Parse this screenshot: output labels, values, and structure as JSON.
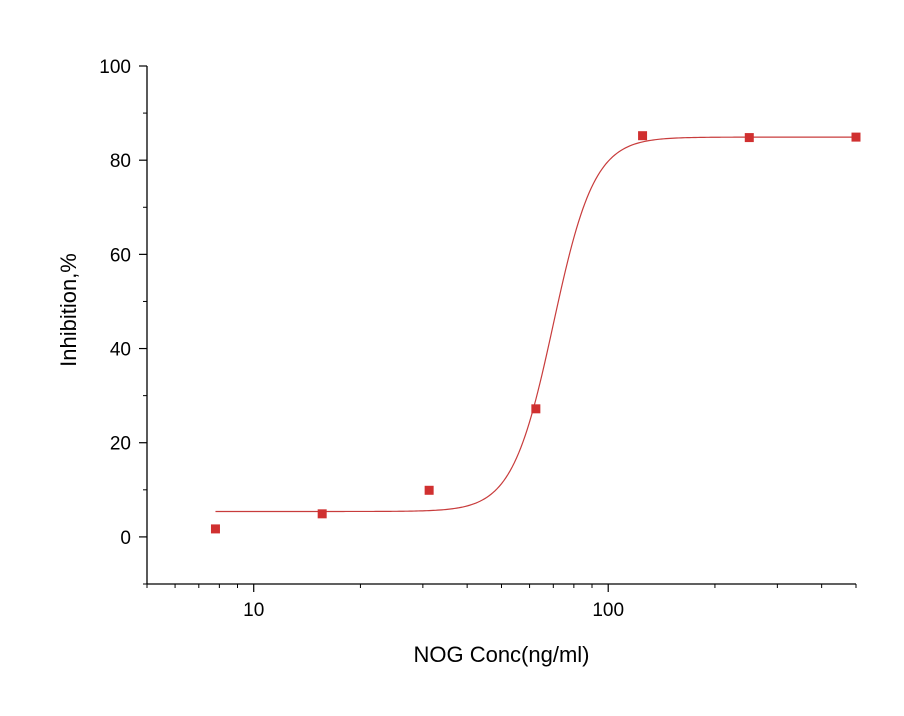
{
  "chart_data": {
    "type": "scatter",
    "title": "",
    "xlabel": "NOG Conc(ng/ml)",
    "ylabel": "Inhibition,%",
    "x_scale": "log",
    "xlim": [
      5,
      500
    ],
    "ylim": [
      -10,
      100
    ],
    "x_ticks": [
      10,
      100
    ],
    "x_tick_labels": [
      "10",
      "100"
    ],
    "y_ticks": [
      0,
      20,
      40,
      60,
      80,
      100
    ],
    "y_tick_labels": [
      "0",
      "20",
      "40",
      "60",
      "80",
      "100"
    ],
    "grid": false,
    "legend": "none",
    "marker_color": "#d03030",
    "line_color": "#c83c3c",
    "points": [
      {
        "x": 7.8,
        "y": 1.7
      },
      {
        "x": 15.6,
        "y": 4.9
      },
      {
        "x": 31.25,
        "y": 9.9
      },
      {
        "x": 62.5,
        "y": 27.2
      },
      {
        "x": 125,
        "y": 85.2
      },
      {
        "x": 250,
        "y": 84.8
      },
      {
        "x": 500,
        "y": 84.9
      }
    ],
    "fit_curve": {
      "model": "4-parameter logistic",
      "bottom": 5.4,
      "top": 84.9,
      "ec50": 70,
      "hill": 7.5,
      "x_range": [
        7.8,
        500
      ]
    }
  }
}
